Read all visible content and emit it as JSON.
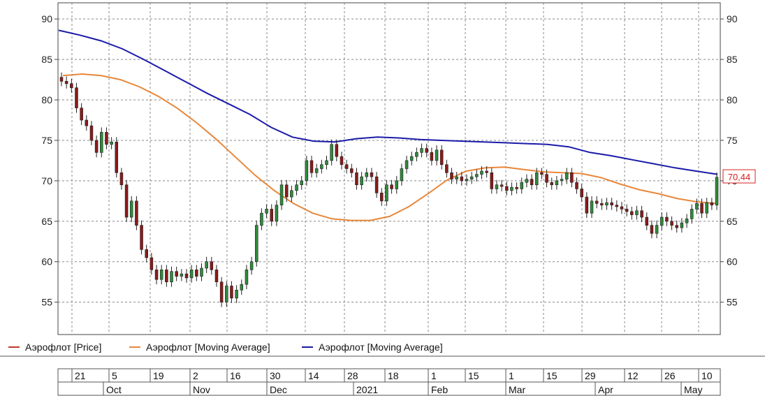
{
  "chart_data": {
    "type": "candlestick",
    "ylim": [
      51,
      92
    ],
    "yticks": [
      55,
      60,
      65,
      70,
      75,
      80,
      85,
      90
    ],
    "grid": true,
    "last_price_label": "70,44",
    "legend_placement": "bottom-left",
    "legend": [
      {
        "label": "Аэрофлот [Price]",
        "color": "#c0392b"
      },
      {
        "label": "Аэрофлот [Moving Average]",
        "color": "#e8873a"
      },
      {
        "label": "Аэрофлот [Moving Average]",
        "color": "#1a1aa8"
      }
    ],
    "x_day_labels": [
      "21",
      "5",
      "19",
      "2",
      "16",
      "30",
      "14",
      "28",
      "18",
      "1",
      "15",
      "1",
      "15",
      "29",
      "12",
      "26",
      "10"
    ],
    "x_month_labels": [
      "Oct",
      "Nov",
      "Dec",
      "2021",
      "Feb",
      "Mar",
      "Apr",
      "May"
    ],
    "ma_fast": [
      83.0,
      83.2,
      83.0,
      82.5,
      81.6,
      80.4,
      78.9,
      77.1,
      75.1,
      72.9,
      70.7,
      68.8,
      67.2,
      66.0,
      65.3,
      65.1,
      65.1,
      65.6,
      66.8,
      68.4,
      70.1,
      71.2,
      71.6,
      71.7,
      71.4,
      71.1,
      71.0,
      70.9,
      70.4,
      69.6,
      68.9,
      68.4,
      67.8,
      67.4,
      67.2
    ],
    "ma_slow": [
      88.6,
      88.0,
      87.3,
      86.3,
      85.0,
      83.6,
      82.2,
      80.8,
      79.5,
      78.2,
      76.6,
      75.4,
      74.9,
      74.8,
      75.2,
      75.4,
      75.3,
      75.1,
      75.0,
      74.9,
      74.8,
      74.7,
      74.6,
      74.5,
      74.2,
      73.5,
      73.1,
      72.6,
      72.1,
      71.6,
      71.2,
      70.8
    ],
    "candles": [
      [
        82.8,
        82.3
      ],
      [
        82.3,
        82.0
      ],
      [
        82.0,
        81.5
      ],
      [
        81.5,
        79.0
      ],
      [
        79.0,
        77.5
      ],
      [
        77.5,
        76.8
      ],
      [
        76.8,
        75.0
      ],
      [
        75.0,
        73.5
      ],
      [
        73.5,
        76.0
      ],
      [
        76.0,
        74.5
      ],
      [
        74.5,
        74.8
      ],
      [
        74.8,
        71.0
      ],
      [
        71.0,
        69.5
      ],
      [
        69.5,
        65.5
      ],
      [
        65.5,
        67.5
      ],
      [
        67.5,
        64.5
      ],
      [
        64.5,
        61.5
      ],
      [
        61.5,
        60.5
      ],
      [
        60.5,
        59.0
      ],
      [
        59.0,
        57.8
      ],
      [
        57.8,
        59.0
      ],
      [
        59.0,
        57.5
      ],
      [
        57.5,
        58.8
      ],
      [
        58.8,
        58.2
      ],
      [
        58.2,
        58.5
      ],
      [
        58.5,
        58.0
      ],
      [
        58.0,
        59.0
      ],
      [
        59.0,
        58.2
      ],
      [
        58.2,
        59.2
      ],
      [
        59.2,
        60.0
      ],
      [
        60.0,
        59.0
      ],
      [
        59.0,
        57.5
      ],
      [
        57.5,
        55.0
      ],
      [
        55.0,
        57.0
      ],
      [
        57.0,
        55.5
      ],
      [
        55.5,
        56.5
      ],
      [
        56.5,
        57.2
      ],
      [
        57.2,
        59.0
      ],
      [
        59.0,
        60.0
      ],
      [
        60.0,
        64.5
      ],
      [
        64.5,
        66.0
      ],
      [
        66.0,
        66.5
      ],
      [
        66.5,
        65.0
      ],
      [
        65.0,
        67.0
      ],
      [
        67.0,
        69.5
      ],
      [
        69.5,
        68.0
      ],
      [
        68.0,
        68.8
      ],
      [
        68.8,
        69.5
      ],
      [
        69.5,
        70.0
      ],
      [
        70.0,
        72.5
      ],
      [
        72.5,
        71.0
      ],
      [
        71.0,
        71.5
      ],
      [
        71.5,
        72.0
      ],
      [
        72.0,
        72.5
      ],
      [
        72.5,
        74.5
      ],
      [
        74.5,
        73.0
      ],
      [
        73.0,
        72.0
      ],
      [
        72.0,
        71.5
      ],
      [
        71.5,
        71.0
      ],
      [
        71.0,
        69.5
      ],
      [
        69.5,
        70.5
      ],
      [
        70.5,
        71.0
      ],
      [
        71.0,
        70.5
      ],
      [
        70.5,
        68.5
      ],
      [
        68.5,
        67.5
      ],
      [
        67.5,
        69.5
      ],
      [
        69.5,
        69.0
      ],
      [
        69.0,
        70.0
      ],
      [
        70.0,
        71.5
      ],
      [
        71.5,
        72.5
      ],
      [
        72.5,
        73.0
      ],
      [
        73.0,
        73.5
      ],
      [
        73.5,
        74.0
      ],
      [
        74.0,
        73.5
      ],
      [
        73.5,
        72.5
      ],
      [
        72.5,
        73.8
      ],
      [
        73.8,
        72.0
      ],
      [
        72.0,
        71.0
      ],
      [
        71.0,
        70.2
      ],
      [
        70.2,
        70.5
      ],
      [
        70.5,
        70.0
      ],
      [
        70.0,
        70.2
      ],
      [
        70.2,
        70.5
      ],
      [
        70.5,
        70.8
      ],
      [
        70.8,
        71.2
      ],
      [
        71.2,
        71.0
      ],
      [
        71.0,
        69.0
      ],
      [
        69.0,
        69.5
      ],
      [
        69.5,
        69.3
      ],
      [
        69.3,
        68.8
      ],
      [
        68.8,
        69.2
      ],
      [
        69.2,
        69.0
      ],
      [
        69.0,
        69.8
      ],
      [
        69.8,
        70.2
      ],
      [
        70.2,
        69.5
      ],
      [
        69.5,
        71.0
      ],
      [
        71.0,
        70.8
      ],
      [
        70.8,
        69.8
      ],
      [
        69.8,
        69.5
      ],
      [
        69.5,
        70.0
      ],
      [
        70.0,
        70.2
      ],
      [
        70.2,
        71.0
      ],
      [
        71.0,
        69.8
      ],
      [
        69.8,
        69.0
      ],
      [
        69.0,
        68.0
      ],
      [
        68.0,
        66.0
      ],
      [
        66.0,
        67.5
      ],
      [
        67.5,
        67.2
      ],
      [
        67.2,
        67.0
      ],
      [
        67.0,
        67.3
      ],
      [
        67.3,
        67.0
      ],
      [
        67.0,
        66.8
      ],
      [
        66.8,
        66.5
      ],
      [
        66.5,
        66.2
      ],
      [
        66.2,
        65.8
      ],
      [
        65.8,
        66.3
      ],
      [
        66.3,
        65.5
      ],
      [
        65.5,
        64.5
      ],
      [
        64.5,
        63.5
      ],
      [
        63.5,
        64.5
      ],
      [
        64.5,
        65.5
      ],
      [
        65.5,
        65.0
      ],
      [
        65.0,
        64.5
      ],
      [
        64.5,
        64.2
      ],
      [
        64.2,
        64.8
      ],
      [
        64.8,
        65.3
      ],
      [
        65.3,
        66.5
      ],
      [
        66.5,
        67.2
      ],
      [
        67.2,
        66.0
      ],
      [
        66.0,
        67.3
      ],
      [
        67.3,
        67.0
      ],
      [
        67.0,
        70.44
      ]
    ]
  }
}
